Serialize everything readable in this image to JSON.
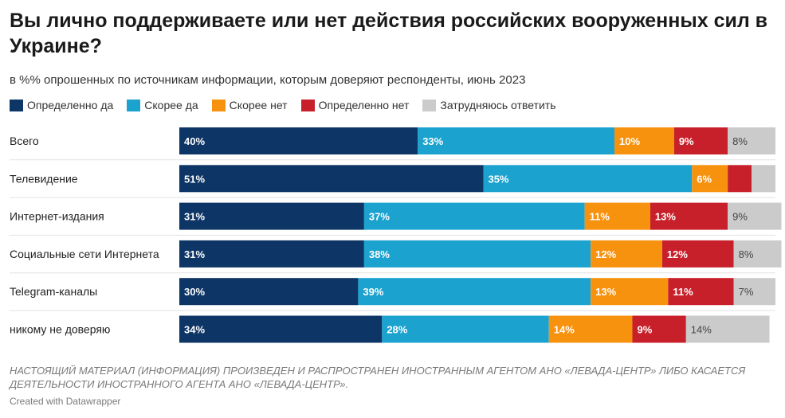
{
  "title": "Вы лично поддерживаете или нет действия российских вооруженных сил в Украине?",
  "subtitle": "в %% опрошенных по источникам информации, которым доверяют респонденты, июнь 2023",
  "footnote": "НАСТОЯЩИЙ МАТЕРИАЛ (ИНФОРМАЦИЯ) ПРОИЗВЕДЕН И РАСПРОСТРАНЕН ИНОСТРАННЫМ АГЕНТОМ АНО «ЛЕВАДА-ЦЕНТР» ЛИБО КАСАЕТСЯ ДЕЯТЕЛЬНОСТИ ИНОСТРАННОГО АГЕНТА АНО «ЛЕВАДА-ЦЕНТР».",
  "credit": "Created with Datawrapper",
  "chart_data": {
    "type": "bar",
    "orientation": "horizontal",
    "stacked": true,
    "categories": [
      "Всего",
      "Телевидение",
      "Интернет-издания",
      "Социальные сети Интернета",
      "Telegram-каналы",
      "никому не доверяю"
    ],
    "series": [
      {
        "name": "Определенно да",
        "color": "#0d3566",
        "values": [
          40,
          51,
          31,
          31,
          30,
          34
        ],
        "labels": [
          "40%",
          "51%",
          "31%",
          "31%",
          "30%",
          "34%"
        ]
      },
      {
        "name": "Скорее да",
        "color": "#1ba2cf",
        "values": [
          33,
          35,
          37,
          38,
          39,
          28
        ],
        "labels": [
          "33%",
          "35%",
          "37%",
          "38%",
          "39%",
          "28%"
        ]
      },
      {
        "name": "Скорее нет",
        "color": "#f7920f",
        "values": [
          10,
          6,
          11,
          12,
          13,
          14
        ],
        "labels": [
          "10%",
          "6%",
          "11%",
          "12%",
          "13%",
          "14%"
        ]
      },
      {
        "name": "Определенно нет",
        "color": "#c8202a",
        "values": [
          9,
          4,
          13,
          12,
          11,
          9
        ],
        "labels": [
          "9%",
          "",
          "13%",
          "12%",
          "11%",
          "9%"
        ]
      },
      {
        "name": "Затрудняюсь ответить",
        "color": "#cbcbcb",
        "values": [
          8,
          4,
          9,
          8,
          7,
          14
        ],
        "labels": [
          "8%",
          "",
          "9%",
          "8%",
          "7%",
          "14%"
        ]
      }
    ],
    "xlim": [
      0,
      100
    ]
  }
}
